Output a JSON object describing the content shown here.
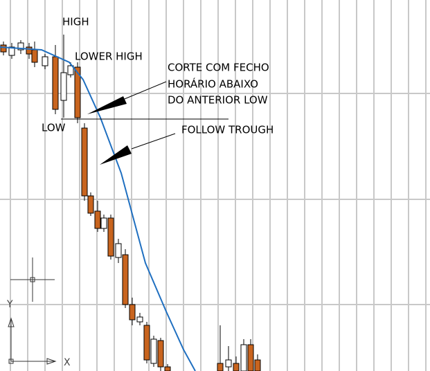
{
  "annotations": {
    "high": "HIGH",
    "lower_high": "LOWER HIGH",
    "low": "LOW",
    "cut_note": [
      "CORTE COM FECHO",
      "HORÁRIO ABAIXO",
      "DO ANTERIOR LOW"
    ],
    "follow": "FOLLOW TROUGH"
  },
  "ucs_icon": {
    "y_label": "Y",
    "x_label": "X"
  }
}
